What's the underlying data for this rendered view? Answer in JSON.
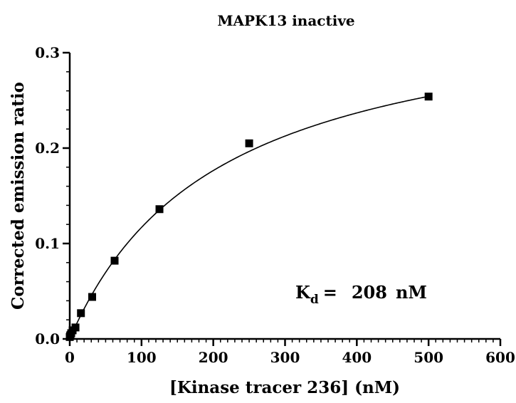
{
  "chart_data": {
    "type": "scatter",
    "title": "MAPK13 inactive",
    "xlabel": "[Kinase tracer 236] (nM)",
    "ylabel": "Corrected emission ratio",
    "xlim": [
      0,
      600
    ],
    "ylim": [
      0,
      0.3
    ],
    "x_major_ticks": [
      0,
      100,
      200,
      300,
      400,
      500,
      600
    ],
    "x_tick_labels": [
      "0",
      "100",
      "200",
      "300",
      "400",
      "500",
      "600"
    ],
    "y_major_ticks": [
      0.0,
      0.1,
      0.2,
      0.3
    ],
    "y_tick_labels": [
      "0.0",
      "0.1",
      "0.2",
      "0.3"
    ],
    "grid": false,
    "series": [
      {
        "marker": "square",
        "points": [
          {
            "x": 0,
            "y": 0.002
          },
          {
            "x": 0.5,
            "y": 0.003
          },
          {
            "x": 1,
            "y": 0.004
          },
          {
            "x": 2,
            "y": 0.006
          },
          {
            "x": 4,
            "y": 0.009
          },
          {
            "x": 8,
            "y": 0.012
          },
          {
            "x": 15.6,
            "y": 0.027
          },
          {
            "x": 31.25,
            "y": 0.044
          },
          {
            "x": 62.5,
            "y": 0.082
          },
          {
            "x": 125,
            "y": 0.136
          },
          {
            "x": 250,
            "y": 0.205
          },
          {
            "x": 500,
            "y": 0.254
          }
        ]
      }
    ],
    "fit": {
      "model": "one-site binding",
      "bmax": 0.36,
      "kd": 208
    },
    "annotation": {
      "label": "K",
      "subscript": "d",
      "equals": "=",
      "value": "208",
      "unit": "nM"
    }
  }
}
